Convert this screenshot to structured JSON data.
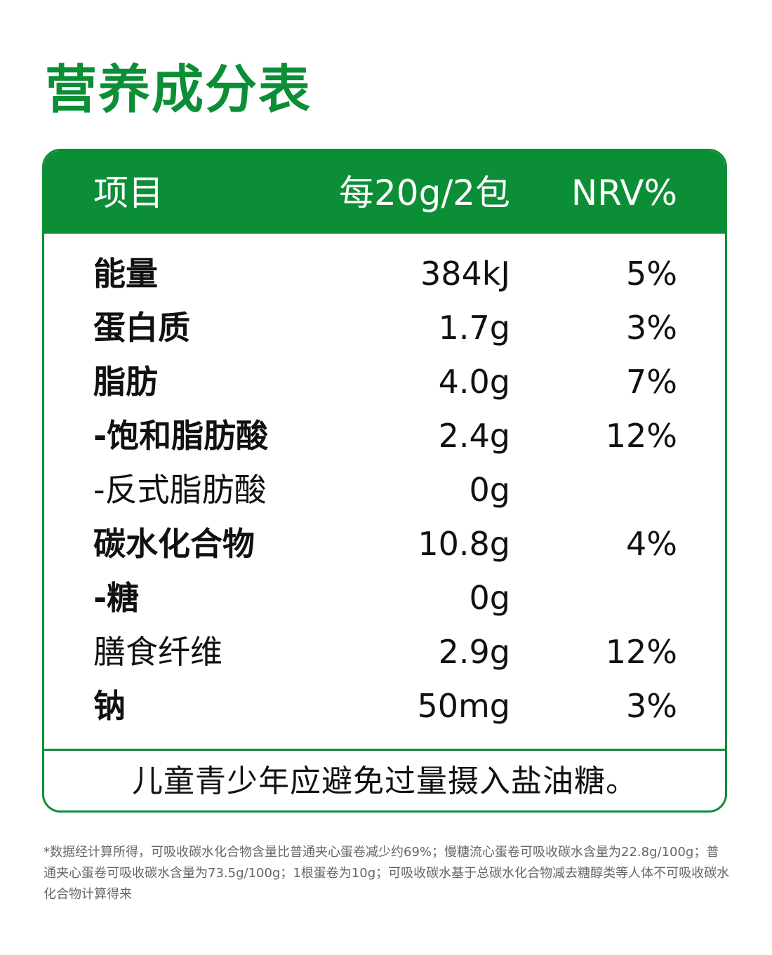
{
  "title": "营养成分表",
  "table": {
    "headers": {
      "item": "项目",
      "per": "每20g/2包",
      "nrv": "NRV%"
    },
    "rows": [
      {
        "name": "能量",
        "amount": "384kJ",
        "nrv": "5%",
        "bold": true
      },
      {
        "name": "蛋白质",
        "amount": "1.7g",
        "nrv": "3%",
        "bold": true
      },
      {
        "name": "脂肪",
        "amount": "4.0g",
        "nrv": "7%",
        "bold": true
      },
      {
        "name": "-饱和脂肪酸",
        "amount": "2.4g",
        "nrv": "12%",
        "bold": true
      },
      {
        "name": "-反式脂肪酸",
        "amount": "0g",
        "nrv": "",
        "bold": false
      },
      {
        "name": "碳水化合物",
        "amount": "10.8g",
        "nrv": "4%",
        "bold": true
      },
      {
        "name": "-糖",
        "amount": "0g",
        "nrv": "",
        "bold": true
      },
      {
        "name": "膳食纤维",
        "amount": "2.9g",
        "nrv": "12%",
        "bold": false
      },
      {
        "name": "钠",
        "amount": "50mg",
        "nrv": "3%",
        "bold": true
      }
    ],
    "advice": "儿童青少年应避免过量摄入盐油糖。"
  },
  "footnote": "*数据经计算所得，可吸收碳水化合物含量比普通夹心蛋卷减少约69%；慢糖流心蛋卷可吸收碳水含量为22.8g/100g；普通夹心蛋卷可吸收碳水含量为73.5g/100g；1根蛋卷为10g；可吸收碳水基于总碳水化合物减去糖醇类等人体不可吸收碳水化合物计算得来",
  "colors": {
    "brand_green": "#0b8e35",
    "text": "#111111",
    "footnote": "#666666"
  }
}
